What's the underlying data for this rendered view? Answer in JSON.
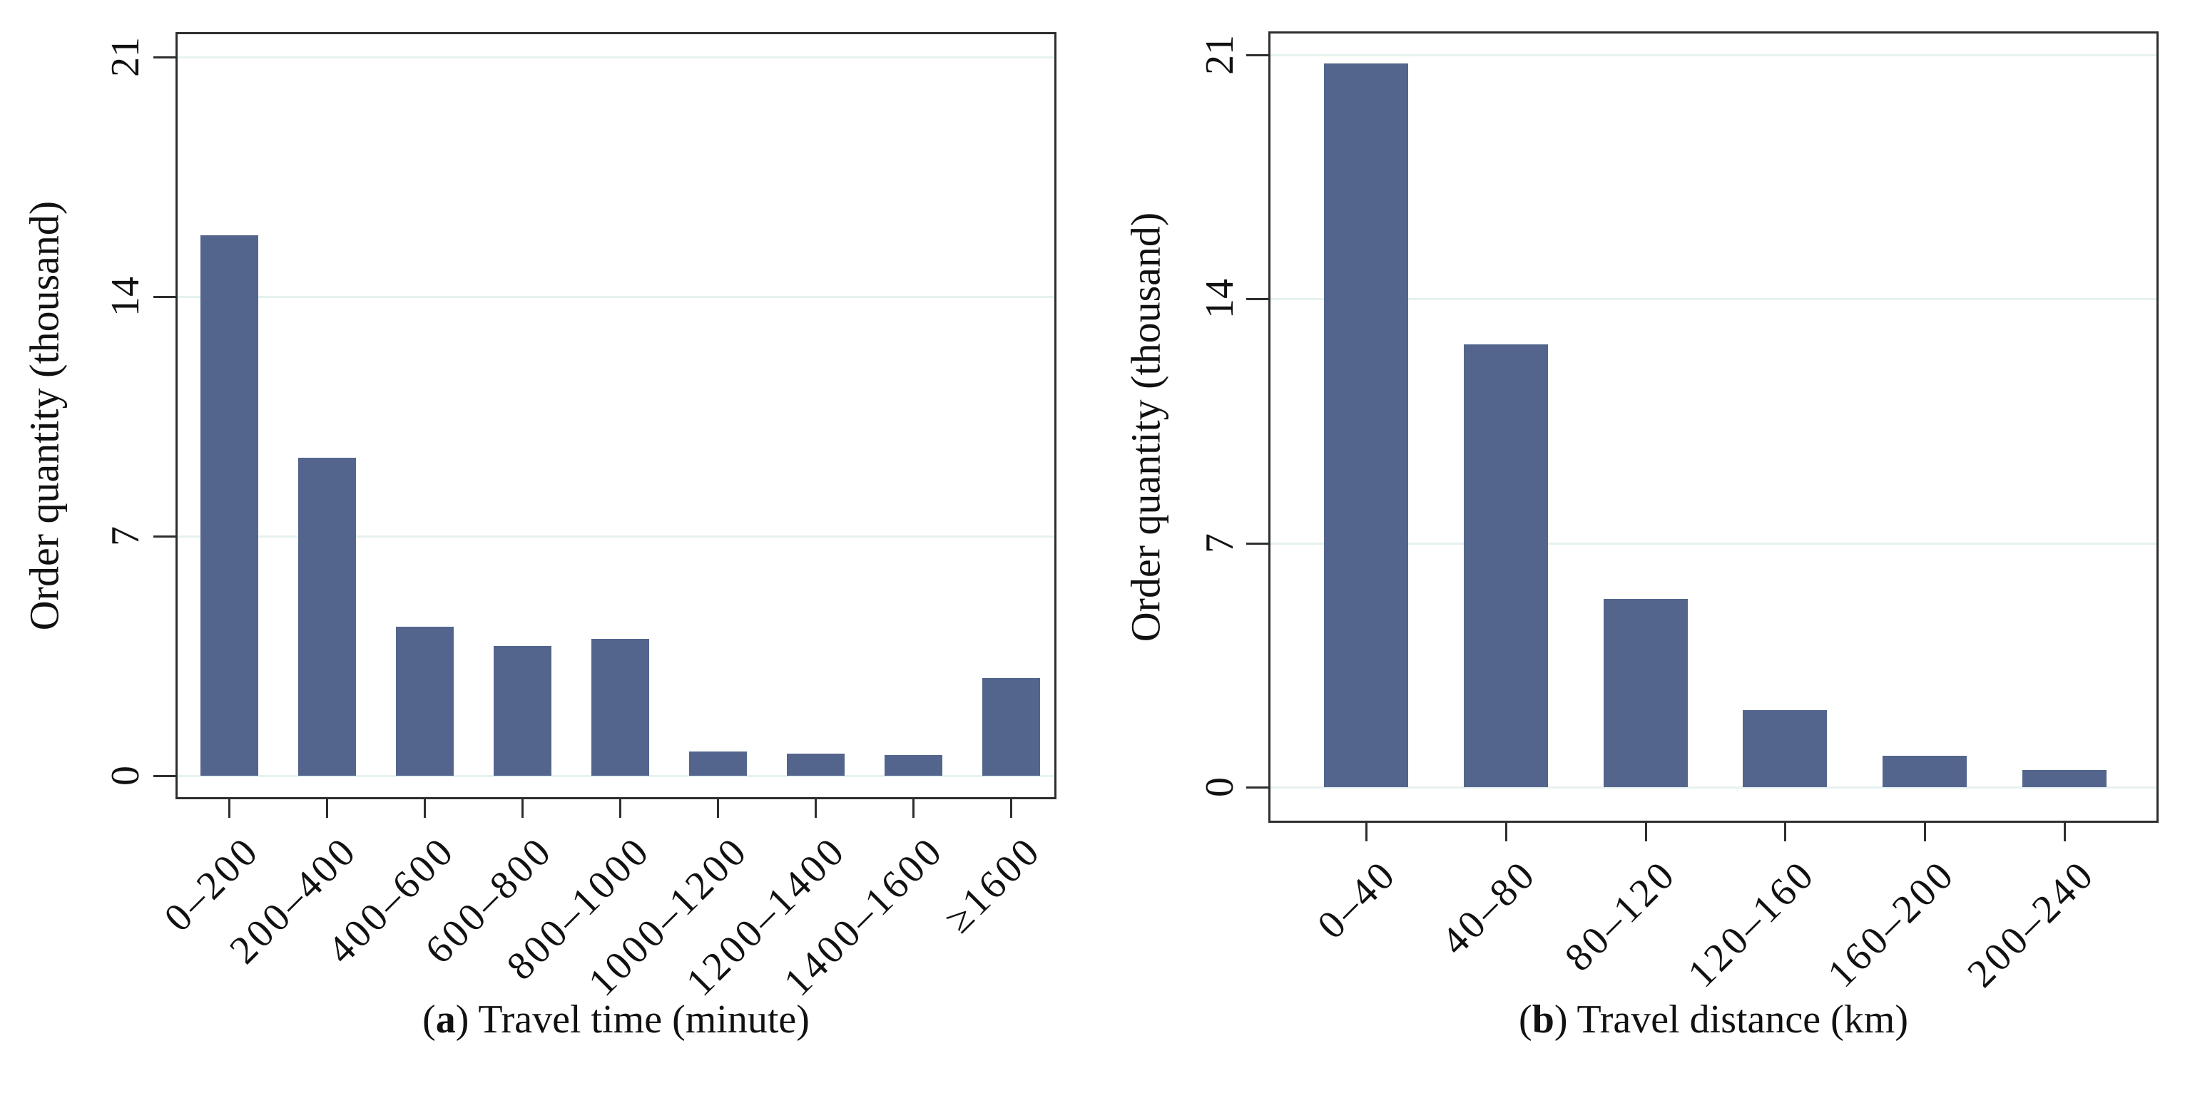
{
  "chart_data": [
    {
      "type": "bar",
      "id": "a",
      "title": "(a) Travel time (minute)",
      "caption": {
        "open": "(",
        "letter": "a",
        "rest": ") Travel time (minute)"
      },
      "categories": [
        "0–200",
        "200–400",
        "400–600",
        "600–800",
        "800–1000",
        "1000–1200",
        "1200–1400",
        "1400–1600",
        "≥1600"
      ],
      "values": [
        15.8,
        9.3,
        4.35,
        3.8,
        4.0,
        0.7,
        0.65,
        0.6,
        2.85
      ],
      "xlabel": "Travel time (minute)",
      "ylabel": "Order quantity (thousand)",
      "y_ticks": [
        0,
        7,
        14,
        21
      ],
      "ylim": [
        -0.7,
        21.7
      ],
      "grid": true,
      "legend_position": "none",
      "bar_color": "#53658d",
      "grid_color": "#e6f2f0",
      "frame_color": "#2e2e2e"
    },
    {
      "type": "bar",
      "id": "b",
      "title": "(b) Travel distance (km)",
      "caption": {
        "open": "(",
        "letter": "b",
        "rest": ") Travel distance (km)"
      },
      "categories": [
        "0–40",
        "40–80",
        "80–120",
        "120–160",
        "160–200",
        "200–240"
      ],
      "values": [
        20.75,
        12.7,
        5.4,
        2.2,
        0.9,
        0.5
      ],
      "xlabel": "Travel distance (km)",
      "ylabel": "Order quantity (thousand)",
      "y_ticks": [
        0,
        7,
        14,
        21
      ],
      "ylim": [
        -1.0,
        21.7
      ],
      "grid": true,
      "legend_position": "none",
      "bar_color": "#53658d",
      "grid_color": "#e6f2f0",
      "frame_color": "#2e2e2e"
    }
  ]
}
